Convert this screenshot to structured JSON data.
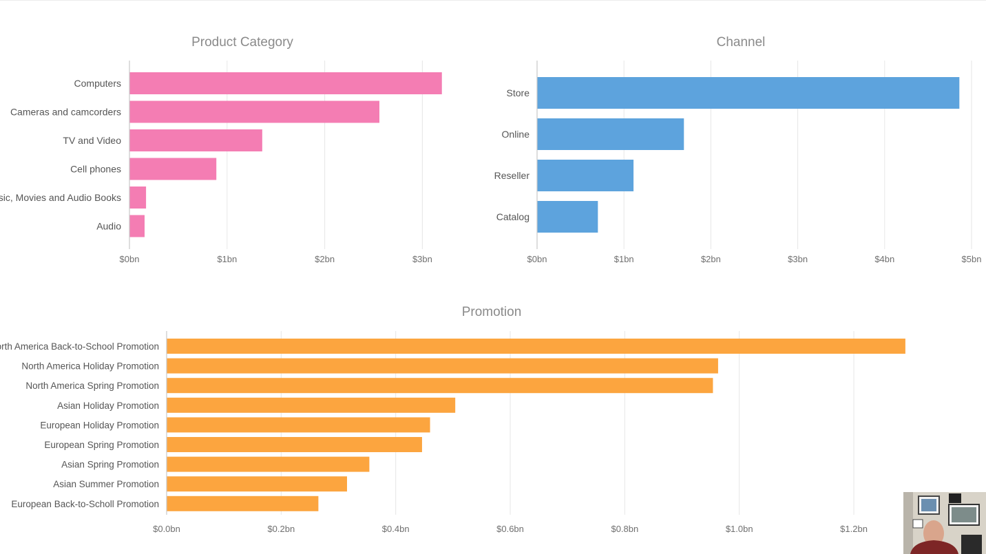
{
  "chart_data": [
    {
      "type": "bar",
      "orientation": "horizontal",
      "title": "Product Category",
      "categories": [
        "Computers",
        "Cameras and camcorders",
        "TV and Video",
        "Cell phones",
        "Music, Movies and Audio Books",
        "Audio"
      ],
      "values": [
        3.2,
        2.56,
        1.36,
        0.89,
        0.17,
        0.155
      ],
      "unit": "bn",
      "xlim": [
        0,
        3.2
      ],
      "ticks": [
        "$0bn",
        "$1bn",
        "$2bn",
        "$3bn"
      ],
      "tick_values": [
        0,
        1,
        2,
        3
      ],
      "color": "#f47db3",
      "grid": true
    },
    {
      "type": "bar",
      "orientation": "horizontal",
      "title": "Channel",
      "categories": [
        "Store",
        "Online",
        "Reseller",
        "Catalog"
      ],
      "values": [
        4.86,
        1.69,
        1.11,
        0.7
      ],
      "unit": "bn",
      "xlim": [
        0,
        5
      ],
      "ticks": [
        "$0bn",
        "$1bn",
        "$2bn",
        "$3bn",
        "$4bn",
        "$5bn"
      ],
      "tick_values": [
        0,
        1,
        2,
        3,
        4,
        5
      ],
      "color": "#5da3dd",
      "grid": true
    },
    {
      "type": "bar",
      "orientation": "horizontal",
      "title": "Promotion",
      "categories": [
        "North America Back-to-School Promotion",
        "North America Holiday Promotion",
        "North America Spring Promotion",
        "Asian Holiday Promotion",
        "European Holiday Promotion",
        "European Spring Promotion",
        "Asian Spring Promotion",
        "Asian Summer Promotion",
        "European Back-to-Scholl Promotion"
      ],
      "values": [
        1.29,
        0.963,
        0.954,
        0.504,
        0.46,
        0.446,
        0.354,
        0.315,
        0.265
      ],
      "unit": "bn",
      "xlim": [
        0,
        1.4
      ],
      "ticks": [
        "$0.0bn",
        "$0.2bn",
        "$0.4bn",
        "$0.6bn",
        "$0.8bn",
        "$1.0bn",
        "$1.2bn"
      ],
      "tick_values": [
        0,
        0.2,
        0.4,
        0.6,
        0.8,
        1.0,
        1.2
      ],
      "color": "#fca53f",
      "grid": true
    }
  ],
  "colors": {
    "grid": "#e6e6e6",
    "axis": "#c9c9c9",
    "title": "#8a8a8a",
    "label": "#555555",
    "tick": "#6f6f6f"
  }
}
